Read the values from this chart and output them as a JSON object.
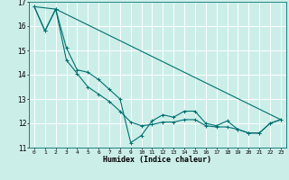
{
  "xlabel": "Humidex (Indice chaleur)",
  "bg_color": "#cceee8",
  "grid_color": "#ffffff",
  "line_color": "#007070",
  "xlim": [
    -0.5,
    23.5
  ],
  "ylim": [
    11,
    17
  ],
  "yticks": [
    11,
    12,
    13,
    14,
    15,
    16,
    17
  ],
  "xticks": [
    0,
    1,
    2,
    3,
    4,
    5,
    6,
    7,
    8,
    9,
    10,
    11,
    12,
    13,
    14,
    15,
    16,
    17,
    18,
    19,
    20,
    21,
    22,
    23
  ],
  "line1_x": [
    0,
    1,
    2,
    3,
    4,
    5,
    6,
    7,
    8,
    9,
    10,
    11,
    12,
    13,
    14,
    15,
    16,
    17,
    18,
    19,
    20,
    21,
    22,
    23
  ],
  "line1_y": [
    16.8,
    15.8,
    16.7,
    15.1,
    14.2,
    14.1,
    13.8,
    13.4,
    13.0,
    11.2,
    11.5,
    12.1,
    12.35,
    12.25,
    12.5,
    12.5,
    12.0,
    11.9,
    12.1,
    11.75,
    11.6,
    11.6,
    12.0,
    12.15
  ],
  "line2_x": [
    0,
    1,
    2,
    3,
    4,
    5,
    6,
    7,
    8,
    9,
    10,
    11,
    12,
    13,
    14,
    15,
    16,
    17,
    18,
    19,
    20,
    21,
    22,
    23
  ],
  "line2_y": [
    16.8,
    15.8,
    16.7,
    14.6,
    14.05,
    13.5,
    13.2,
    12.9,
    12.5,
    12.05,
    11.9,
    11.95,
    12.05,
    12.05,
    12.15,
    12.15,
    11.9,
    11.85,
    11.85,
    11.75,
    11.6,
    11.6,
    12.0,
    12.15
  ],
  "line3_x": [
    0,
    2,
    23
  ],
  "line3_y": [
    16.8,
    16.7,
    12.15
  ]
}
